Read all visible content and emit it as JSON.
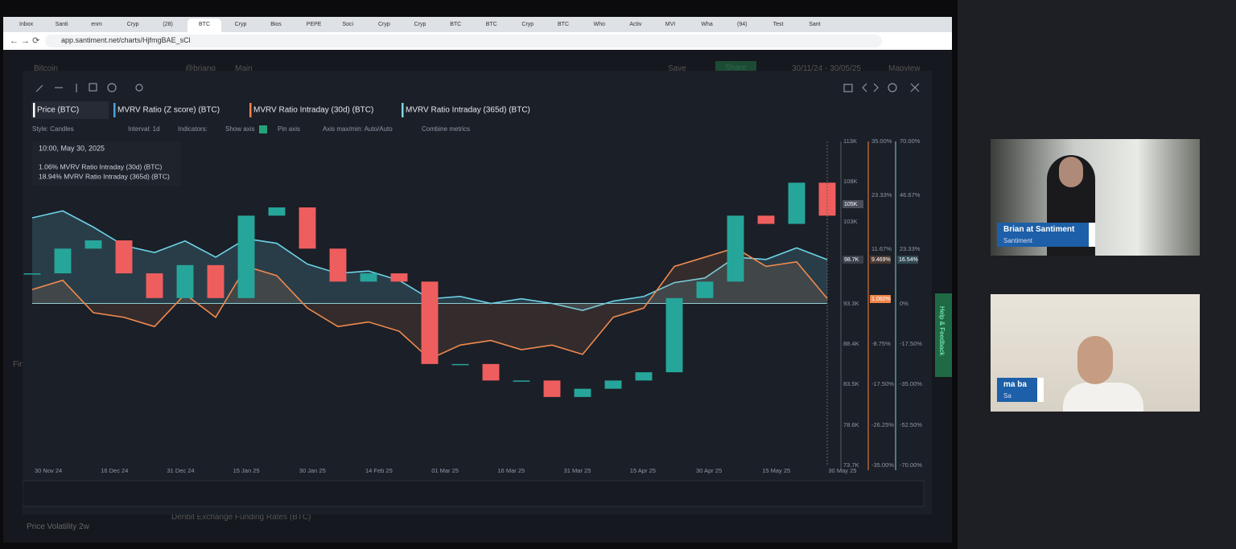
{
  "browser": {
    "tabs": [
      "Inbox",
      "Santi",
      "enm",
      "Cryp",
      "(28)",
      "BTC",
      "Cryp",
      "Bios",
      "PEPE",
      "Soci",
      "Cryp",
      "Cryp",
      "BTC",
      "BTC",
      "Cryp",
      "BTC",
      "Who",
      "Activ",
      "MVI",
      "Wha",
      "(94)",
      "Test",
      "Sant"
    ],
    "url": "app.santiment.net/charts/HjfmgBAE_sCl"
  },
  "app_background": {
    "title": "Bitcoin",
    "user": "@brianq",
    "tab": "Main",
    "save": "Save",
    "share": "Share",
    "date_range": "30/11/24 - 30/05/25",
    "view": "Mapview",
    "bottom_left": "Price Volatility 2w",
    "bottom_center": "Deribit Exchange Funding Rates (BTC)",
    "side_label": "Fin"
  },
  "chart": {
    "metrics": [
      "Price (BTC)",
      "MVRV Ratio (Z score) (BTC)",
      "MVRV Ratio Intraday (30d) (BTC)",
      "MVRV Ratio Intraday (365d) (BTC)"
    ],
    "toolbar": [
      "Style: Candles",
      "Interval: 1d",
      "Indicators:",
      "Show axis",
      "Pin axis",
      "Axis max/min: Auto/Auto",
      "Combine metrics"
    ],
    "tooltip": {
      "time": "10:00, May 30, 2025",
      "rows": [
        "1.06% MVRV Ratio Intraday (30d) (BTC)",
        "18.94% MVRV Ratio Intraday (365d) (BTC)"
      ]
    },
    "x_labels": [
      "30 Nov 24",
      "16 Dec 24",
      "31 Dec 24",
      "15 Jan 25",
      "30 Jan 25",
      "14 Feb 25",
      "01 Mar 25",
      "16 Mar 25",
      "31 Mar 25",
      "15 Apr 25",
      "30 Apr 25",
      "15 May 25",
      "30 May 25"
    ],
    "price_ticks": [
      "113K",
      "108K",
      "103K",
      "93.3K",
      "88.4K",
      "83.5K",
      "78.6K",
      "73.7K"
    ],
    "mvrv_30d_ticks": [
      "35.00%",
      "23.33%",
      "11.67%",
      "-8.75%",
      "-17.50%",
      "-26.25%",
      "-35.00%"
    ],
    "mvrv_365d_ticks": [
      "70.00%",
      "46.67%",
      "23.33%",
      "0%",
      "-17.50%",
      "-35.00%",
      "-52.50%",
      "-70.00%"
    ],
    "highlights": {
      "price_last": "105K",
      "price_cursor": "98.7K",
      "mvrv_30d_cursor": "9.469%",
      "mvrv_30d_last": "1.060%",
      "mvrv_365d_cursor": "16.54%"
    },
    "price_range": [
      73.7,
      113
    ],
    "mvrv_30d_range": [
      -35,
      35
    ],
    "mvrv_365d_range": [
      -70,
      70
    ],
    "price": [
      97,
      100,
      101,
      97,
      94,
      98,
      94,
      104,
      105,
      100,
      96,
      97,
      96,
      86,
      86,
      84,
      84,
      82,
      83,
      84,
      85,
      94,
      96,
      104,
      103,
      108,
      104
    ],
    "mvrv_30d": [
      3,
      5,
      -2,
      -3,
      -5,
      2,
      -3,
      8,
      6,
      -1,
      -5,
      -4,
      -6,
      -12,
      -9,
      -8,
      -10,
      -9,
      -11,
      -3,
      -1,
      8,
      10,
      12,
      8,
      9,
      1.06
    ],
    "mvrv_365d": [
      37,
      40,
      33,
      25,
      22,
      27,
      20,
      28,
      26,
      17,
      13,
      14,
      10,
      2,
      3,
      0,
      2,
      0,
      -3,
      1,
      3,
      9,
      11,
      20,
      19,
      24,
      18.94
    ]
  },
  "side_tab": "Help & Feedback",
  "video": [
    {
      "name": "Brian at Santiment",
      "org": "Santiment"
    },
    {
      "name": "ma ba",
      "org": "Sa"
    }
  ]
}
